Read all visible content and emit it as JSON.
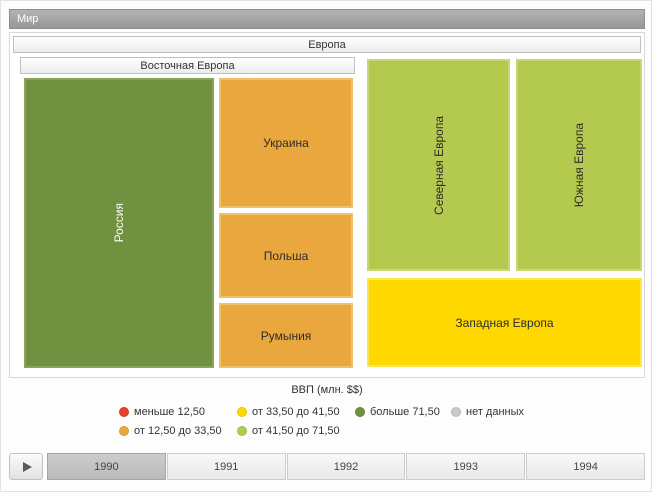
{
  "breadcrumb": {
    "world": "Мир"
  },
  "treemap": {
    "europe_label": "Европа",
    "eastern_label": "Восточная Европа",
    "tiles": {
      "russia": {
        "label": "Россия",
        "color": "#6f9140"
      },
      "ukraine": {
        "label": "Украина",
        "color": "#eaa73e"
      },
      "poland": {
        "label": "Польша",
        "color": "#eaa73e"
      },
      "romania": {
        "label": "Румыния",
        "color": "#eaa73e"
      },
      "north": {
        "label": "Северная Европа",
        "color": "#b4ca4e"
      },
      "south": {
        "label": "Южная Европа",
        "color": "#b4ca4e"
      },
      "west": {
        "label": "Западная Европа",
        "color": "#ffd800"
      }
    }
  },
  "legend": {
    "title": "ВВП (млн. $$)",
    "items": [
      {
        "label": "меньше 12,50",
        "color": "#e8402d"
      },
      {
        "label": "от 12,50 до 33,50",
        "color": "#eaa73e"
      },
      {
        "label": "от 33,50 до 41,50",
        "color": "#ffd800"
      },
      {
        "label": "от 41,50 до 71,50",
        "color": "#b4ca4e"
      },
      {
        "label": "больше 71,50",
        "color": "#6f9140"
      },
      {
        "label": "нет данных",
        "color": "#c9c9c9"
      }
    ]
  },
  "timeline": {
    "years": [
      {
        "label": "1990",
        "selected": true
      },
      {
        "label": "1991",
        "selected": false
      },
      {
        "label": "1992",
        "selected": false
      },
      {
        "label": "1993",
        "selected": false
      },
      {
        "label": "1994",
        "selected": false
      }
    ]
  },
  "chart_data": {
    "type": "treemap",
    "title": "Мир",
    "legend_title": "ВВП (млн. $$)",
    "legend_position": "bottom",
    "legend_bins": [
      "меньше 12,50",
      "от 12,50 до 33,50",
      "от 33,50 до 41,50",
      "от 41,50 до 71,50",
      "больше 71,50",
      "нет данных"
    ],
    "year": "1990",
    "root": {
      "name": "Мир",
      "children": [
        {
          "name": "Европа",
          "children": [
            {
              "name": "Восточная Европа",
              "children": [
                {
                  "name": "Россия",
                  "bin": "больше 71,50"
                },
                {
                  "name": "Украина",
                  "bin": "от 12,50 до 33,50"
                },
                {
                  "name": "Польша",
                  "bin": "от 12,50 до 33,50"
                },
                {
                  "name": "Румыния",
                  "bin": "от 12,50 до 33,50"
                }
              ]
            },
            {
              "name": "Северная Европа",
              "bin": "от 41,50 до 71,50"
            },
            {
              "name": "Южная Европа",
              "bin": "от 41,50 до 71,50"
            },
            {
              "name": "Западная Европа",
              "bin": "от 33,50 до 41,50"
            }
          ]
        }
      ]
    }
  }
}
